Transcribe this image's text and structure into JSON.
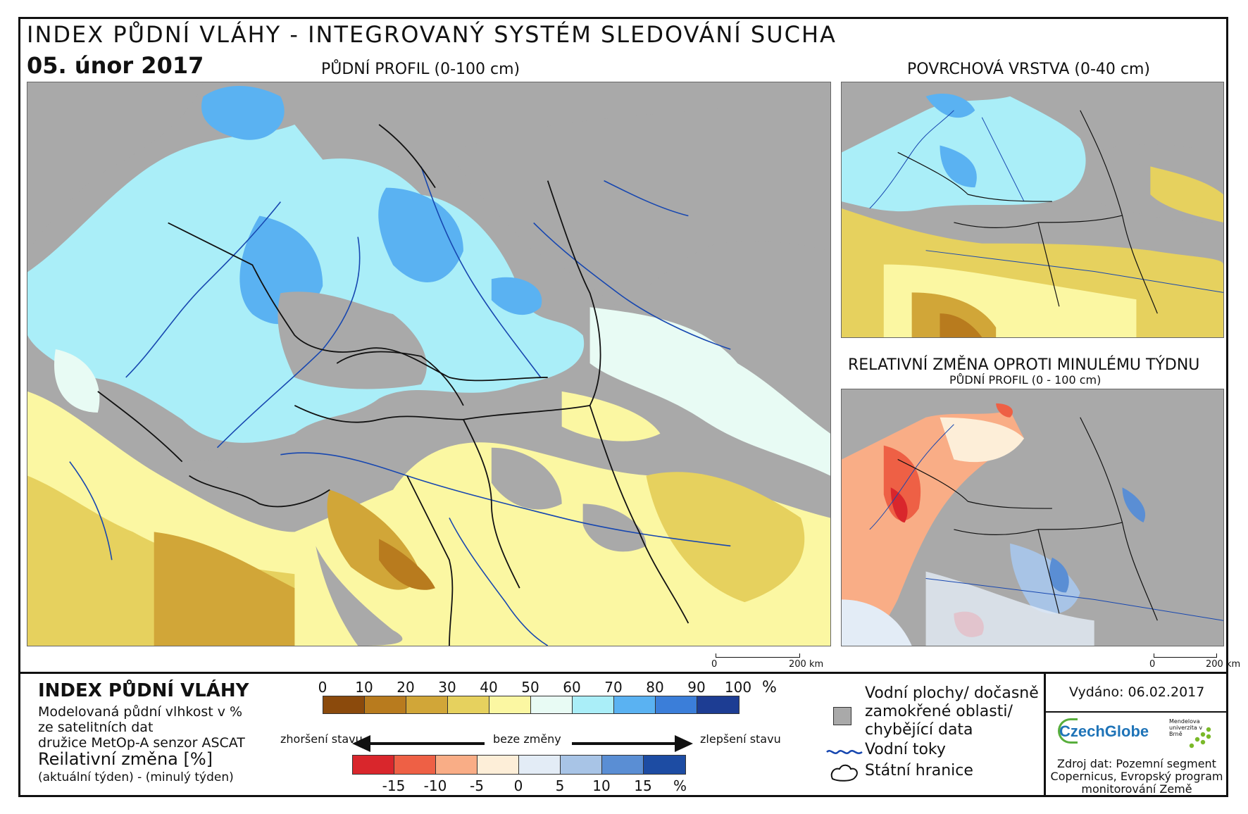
{
  "header": {
    "title": "INDEX PŮDNÍ VLÁHY - INTEGROVANÝ SYSTÉM SLEDOVÁNÍ SUCHA",
    "date": "05. únor 2017"
  },
  "maps": {
    "main_title": "PŮDNÍ PROFIL (0-100 cm)",
    "surface_title": "POVRCHOVÁ VRSTVA (0-40 cm)",
    "change_title": "RELATIVNÍ ZMĚNA OPROTI MINULÉMU TÝDNU",
    "change_subtitle": "PŮDNÍ PROFIL (0 - 100 cm)"
  },
  "scalebars": {
    "main": {
      "start": "0",
      "end": "200 km"
    },
    "change": {
      "start": "0",
      "end": "200 km"
    }
  },
  "legend": {
    "title": "INDEX PŮDNÍ VLÁHY",
    "desc_lines": [
      "Modelovaná půdní vlhkost v %",
      "ze satelitních dat",
      "družice MetOp-A senzor ASCAT"
    ],
    "rel_title": "Reilativní změna [%]",
    "rel_subtitle": "(aktuální týden) - (minulý týden)",
    "moisture_scale": {
      "labels": [
        "0",
        "10",
        "20",
        "30",
        "40",
        "50",
        "60",
        "70",
        "80",
        "90",
        "100"
      ],
      "unit": "%",
      "colors": [
        "#8b4a0c",
        "#b87b1e",
        "#d1a638",
        "#e6d15e",
        "#fbf7a2",
        "#e8fbf4",
        "#aaeef8",
        "#5ab2f2",
        "#3b7ed9",
        "#1d3d93"
      ]
    },
    "change_arrows": {
      "worse": "zhoršení stavu",
      "none": "beze změny",
      "better": "zlepšení stavu"
    },
    "change_scale": {
      "labels": [
        "-15",
        "-10",
        "-5",
        "0",
        "5",
        "10",
        "15"
      ],
      "unit": "%",
      "colors": [
        "#d9262c",
        "#ee6045",
        "#f9ad86",
        "#fdeed8",
        "#e3ecf6",
        "#a8c4e6",
        "#5a8ed4",
        "#1d4ca3"
      ]
    },
    "symbols": {
      "gray_lines": [
        "Vodní plochy/ dočasně",
        "zamokřené oblasti/",
        "chybějící data"
      ],
      "rivers": "Vodní toky",
      "borders": "Státní hranice"
    }
  },
  "info": {
    "issued": "Vydáno: 06.02.2017",
    "czechglobe_logo": "CzechGlobe",
    "mendel_logo": "Mendelova univerzita v Brně",
    "source_lines": [
      "Zdroj dat: Pozemní segment",
      "Copernicus, Evropský program",
      "monitorování Země"
    ]
  }
}
